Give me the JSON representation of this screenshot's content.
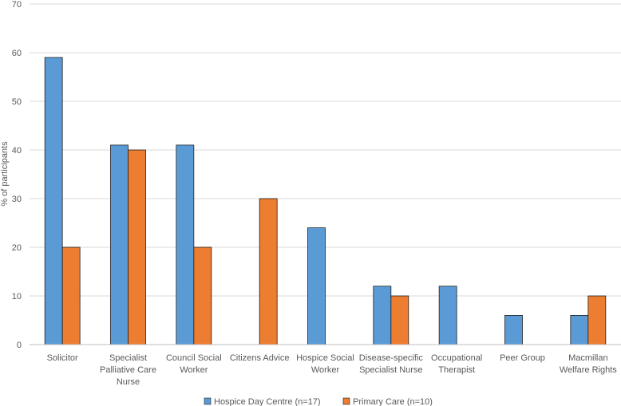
{
  "chart_data": {
    "type": "bar",
    "title": "",
    "xlabel": "",
    "ylabel": "% of participants",
    "ylim": [
      0,
      70
    ],
    "yticks": [
      0,
      10,
      20,
      30,
      40,
      50,
      60,
      70
    ],
    "grid": true,
    "legend_position": "bottom",
    "categories": [
      [
        "Solicitor"
      ],
      [
        "Specialist",
        "Palliative Care",
        "Nurse"
      ],
      [
        "Council Social",
        "Worker"
      ],
      [
        "Citizens Advice"
      ],
      [
        "Hospice Social",
        "Worker"
      ],
      [
        "Disease-specific",
        "Specialist Nurse"
      ],
      [
        "Occupational",
        "Therapist"
      ],
      [
        "Peer Group"
      ],
      [
        "Macmillan",
        "Welfare Rights"
      ]
    ],
    "series": [
      {
        "name": "Hospice Day Centre (n=17)",
        "color": "#5b9bd5",
        "values": [
          59,
          41,
          41,
          0,
          24,
          12,
          12,
          6,
          6
        ]
      },
      {
        "name": "Primary Care (n=10)",
        "color": "#ed7d31",
        "values": [
          20,
          40,
          20,
          30,
          0,
          10,
          0,
          0,
          10
        ]
      }
    ]
  }
}
